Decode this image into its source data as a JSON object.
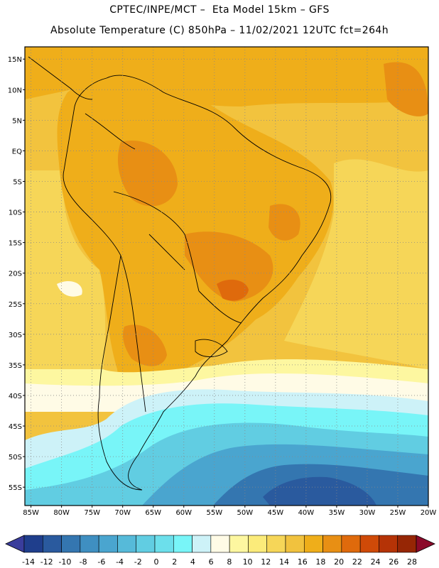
{
  "header": {
    "line1": "CPTEC/INPE/MCT –  Eta Model 15km – GFS",
    "line2": "Absolute Temperature (C) 850hPa – 11/02/2021 12UTC fct=264h"
  },
  "map": {
    "lat_labels": [
      "15N",
      "10N",
      "5N",
      "EQ",
      "5S",
      "10S",
      "15S",
      "20S",
      "25S",
      "30S",
      "35S",
      "40S",
      "45S",
      "50S",
      "55S"
    ],
    "lon_labels": [
      "85W",
      "80W",
      "75W",
      "70W",
      "65W",
      "60W",
      "55W",
      "50W",
      "45W",
      "40W",
      "35W",
      "30W",
      "25W",
      "20W"
    ],
    "lat_range": [
      17,
      -58
    ],
    "lon_range": [
      -86,
      -20
    ]
  },
  "colorbar": {
    "labels": [
      "-14",
      "-12",
      "-10",
      "-8",
      "-6",
      "-4",
      "-2",
      "0",
      "2",
      "4",
      "6",
      "8",
      "10",
      "12",
      "14",
      "16",
      "18",
      "20",
      "22",
      "24",
      "26",
      "28"
    ],
    "colors": [
      "#1f3e8c",
      "#2a5a9e",
      "#3476b0",
      "#3f8fc1",
      "#4aa5cf",
      "#56bad9",
      "#61cde2",
      "#6cdfeb",
      "#78f5f8",
      "#cdf2f8",
      "#fffbe6",
      "#fdf7a0",
      "#fbeb7a",
      "#f6d658",
      "#f1c23e",
      "#efae1a",
      "#e88f14",
      "#df6a0c",
      "#cf4a08",
      "#b53306",
      "#962605",
      "#7a1a0a"
    ],
    "under_color": "#3a3d9c",
    "over_color": "#8b0a2a"
  },
  "fill_colors": {
    "ocean_north": "#f2c33e",
    "ocean_mid": "#f6d658",
    "warm_land": "#efae1a",
    "hot_land": "#e88f14",
    "very_hot": "#df6a0c",
    "cream": "#fffbe6",
    "pale_yellow": "#fdf7a0",
    "light_cyan": "#cdf2f8",
    "cyan": "#78f5f8",
    "aqua": "#61cde2",
    "sky": "#4aa5cf",
    "blue": "#3476b0",
    "deep_blue": "#2a5a9e"
  }
}
